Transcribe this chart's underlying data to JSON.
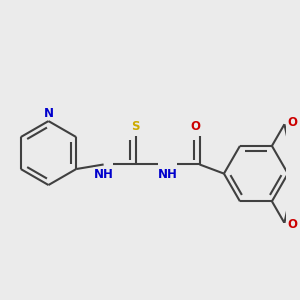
{
  "bg_color": "#ebebeb",
  "bond_color": "#404040",
  "N_color": "#0000cc",
  "O_color": "#cc0000",
  "S_color": "#ccaa00",
  "lw": 1.5,
  "fs": 8.5,
  "xlim": [
    0,
    10
  ],
  "ylim": [
    0,
    10
  ]
}
